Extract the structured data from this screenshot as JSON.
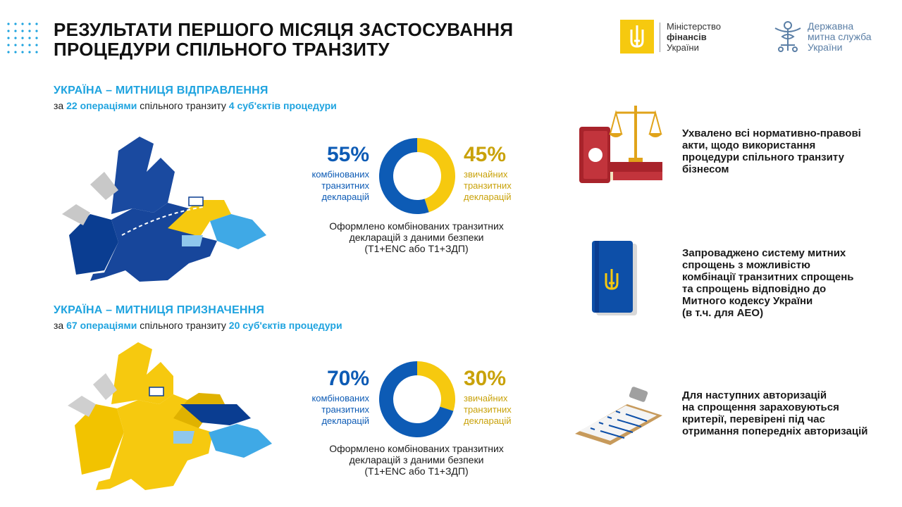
{
  "header": {
    "title_line1": "РЕЗУЛЬТАТИ ПЕРШОГО МІСЯЦЯ ЗАСТОСУВАННЯ",
    "title_line2": "ПРОЦЕДУРИ СПІЛЬНОГО ТРАНЗИТУ",
    "logo_ministry": {
      "line1": "Міністерство",
      "line2": "фінансів",
      "line3": "України"
    },
    "logo_customs": {
      "line1": "Державна",
      "line2": "митна служба",
      "line3": "України"
    }
  },
  "colors": {
    "blue": "#0d5bb5",
    "yellow": "#f6c90f",
    "accent": "#1ea3df",
    "grey": "#c9c9c9"
  },
  "sections": [
    {
      "title": "УКРАЇНА – МИТНИЦЯ ВІДПРАВЛЕННЯ",
      "sub_pre": "за",
      "sub_ops": "22 операціями",
      "sub_mid": "спільного транзиту",
      "sub_subj": "4 суб'єктів процедури",
      "left_pct": "55%",
      "left_label": [
        "комбінованих",
        "транзитних",
        "декларацій"
      ],
      "right_pct": "45%",
      "right_label": [
        "звичайних",
        "транзитних",
        "декларацій"
      ],
      "caption": [
        "Оформлено комбінованих транзитних",
        "декларацій з даними безпеки",
        "(Т1+ENC або Т1+ЗДП)"
      ],
      "map_icon": "europe-map-blue-icon"
    },
    {
      "title": "УКРАЇНА – МИТНИЦЯ ПРИЗНАЧЕННЯ",
      "sub_pre": "за",
      "sub_ops": "67 операціями",
      "sub_mid": "спільного транзиту",
      "sub_subj": "20 суб'єктів процедури",
      "left_pct": "70%",
      "left_label": [
        "комбінованих",
        "транзитних",
        "декларацій"
      ],
      "right_pct": "30%",
      "right_label": [
        "звичайних",
        "транзитних",
        "декларацій"
      ],
      "caption": [
        "Оформлено комбінованих транзитних",
        "декларацій з даними безпеки",
        "(Т1+ENC або Т1+ЗДП)"
      ],
      "map_icon": "europe-map-yellow-icon"
    }
  ],
  "chart_data": [
    {
      "type": "pie",
      "title": "",
      "categories": [
        "комбінованих транзитних декларацій",
        "звичайних транзитних декларацій"
      ],
      "values": [
        55,
        45
      ],
      "colors": [
        "#0d5bb5",
        "#f6c90f"
      ]
    },
    {
      "type": "pie",
      "title": "",
      "categories": [
        "комбінованих транзитних декларацій",
        "звичайних транзитних декларацій"
      ],
      "values": [
        70,
        30
      ],
      "colors": [
        "#0d5bb5",
        "#f6c90f"
      ]
    }
  ],
  "items": [
    {
      "icon": "law-books-scales-icon",
      "lines": [
        "Ухвалено всі нормативно-правові",
        "акти, щодо використання",
        "процедури спільного транзиту",
        "бізнесом"
      ]
    },
    {
      "icon": "customs-code-book-icon",
      "lines": [
        "Запроваджено систему митних",
        "спрощень з можливістю",
        "комбінації транзитних спрощень",
        "та спрощень відповідно до",
        "Митного кодексу України",
        "(в т.ч. для АЕО)"
      ]
    },
    {
      "icon": "clipboard-checklist-icon",
      "lines": [
        "Для наступних авторизацій",
        "на спрощення зараховуються",
        "критерії, перевірені під час",
        "отримання попередніх авторизацій"
      ]
    }
  ]
}
